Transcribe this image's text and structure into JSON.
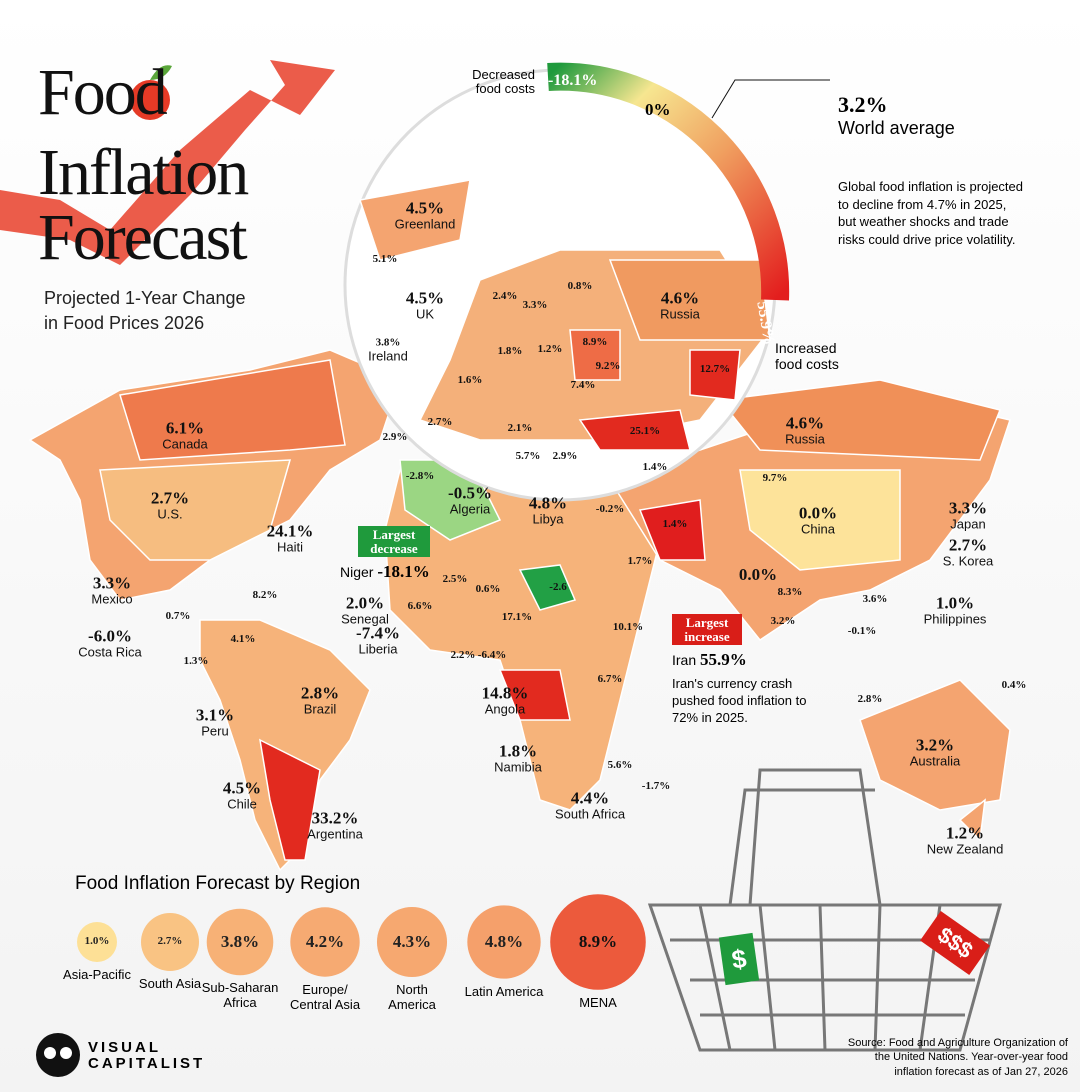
{
  "header": {
    "title_lines": [
      "Food",
      "Inflation",
      "Forecast"
    ],
    "subtitle_lines": [
      "Projected 1-Year Change",
      "in Food Prices 2026"
    ]
  },
  "gauge": {
    "min_label": "Decreased food costs",
    "min_value": "-18.1%",
    "mid_value": "0%",
    "max_value": "55.9%",
    "max_label": "Increased food costs"
  },
  "world_average": {
    "value": "3.2%",
    "label": "World average",
    "note": "Global food inflation is projected to decline from 4.7% in 2025, but weather shocks and trade risks could drive price volatility."
  },
  "countries": [
    {
      "value": "4.5%",
      "name": "Greenland"
    },
    {
      "value": "5.1%"
    },
    {
      "value": "4.5%",
      "name": "UK"
    },
    {
      "value": "3.8%",
      "name": "Ireland"
    },
    {
      "value": "4.6%",
      "name": "Russia"
    },
    {
      "value": "0.8%"
    },
    {
      "value": "2.4%"
    },
    {
      "value": "3.3%"
    },
    {
      "value": "8.9%"
    },
    {
      "value": "1.2%"
    },
    {
      "value": "1.8%"
    },
    {
      "value": "9.2%"
    },
    {
      "value": "1.6%"
    },
    {
      "value": "7.4%"
    },
    {
      "value": "12.7%"
    },
    {
      "value": "2.7%"
    },
    {
      "value": "2.1%"
    },
    {
      "value": "25.1%"
    },
    {
      "value": "2.9%"
    },
    {
      "value": "5.7%"
    },
    {
      "value": "2.9%"
    },
    {
      "value": "6.1%",
      "name": "Canada"
    },
    {
      "value": "4.6%",
      "name": "Russia"
    },
    {
      "value": "1.4%"
    },
    {
      "value": "9.7%"
    },
    {
      "value": "-2.8%"
    },
    {
      "value": "-0.5%",
      "name": "Algeria"
    },
    {
      "value": "4.8%",
      "name": "Libya"
    },
    {
      "value": "-0.2%"
    },
    {
      "value": "2.7%",
      "name": "U.S."
    },
    {
      "value": "0.0%",
      "name": "China"
    },
    {
      "value": "3.3%",
      "name": "Japan"
    },
    {
      "value": "2.7%",
      "name": "S. Korea"
    },
    {
      "value": "24.1%",
      "name": "Haiti"
    },
    {
      "value": "1.4%"
    },
    {
      "value": "1.7%"
    },
    {
      "value": "0.0%"
    },
    {
      "value": "3.3%",
      "name": "Mexico"
    },
    {
      "value": "8.2%"
    },
    {
      "value": "2.5%"
    },
    {
      "value": "0.6%"
    },
    {
      "value": "-2.6"
    },
    {
      "value": "2.0%",
      "name": "Senegal"
    },
    {
      "value": "6.6%"
    },
    {
      "value": "8.3%"
    },
    {
      "value": "3.6%"
    },
    {
      "value": "1.0%",
      "name": "Philippines"
    },
    {
      "value": "0.7%"
    },
    {
      "value": "-6.0%",
      "name": "Costa Rica"
    },
    {
      "value": "4.1%"
    },
    {
      "value": "17.1%"
    },
    {
      "value": "10.1%"
    },
    {
      "value": "-7.4%",
      "name": "Liberia"
    },
    {
      "value": "3.2%"
    },
    {
      "value": "-0.1%"
    },
    {
      "value": "1.3%"
    },
    {
      "value": "2.2%"
    },
    {
      "value": "-6.4%"
    },
    {
      "value": "6.7%"
    },
    {
      "value": "14.8%",
      "name": "Angola"
    },
    {
      "value": "2.8%",
      "name": "Brazil"
    },
    {
      "value": "3.1%",
      "name": "Peru"
    },
    {
      "value": "2.8%"
    },
    {
      "value": "0.4%"
    },
    {
      "value": "1.8%",
      "name": "Namibia"
    },
    {
      "value": "3.2%",
      "name": "Australia"
    },
    {
      "value": "5.6%"
    },
    {
      "value": "-1.7%"
    },
    {
      "value": "4.5%",
      "name": "Chile"
    },
    {
      "value": "4.4%",
      "name": "South Africa"
    },
    {
      "value": "33.2%",
      "name": "Argentina"
    },
    {
      "value": "1.2%",
      "name": "New Zealand"
    }
  ],
  "callouts": {
    "largest_decrease": {
      "tag": "Largest decrease",
      "name": "Niger",
      "value": "-18.1%"
    },
    "largest_increase": {
      "tag": "Largest increase",
      "name": "Iran",
      "value": "55.9%",
      "note": "Iran's currency crash pushed food inflation to 72% in 2025."
    }
  },
  "regions": {
    "title": "Food Inflation Forecast by Region",
    "items": [
      {
        "name": "Asia-Pacific",
        "value": 1.0,
        "value_label": "1.0%"
      },
      {
        "name": "South Asia",
        "value": 2.7,
        "value_label": "2.7%"
      },
      {
        "name": "Sub-Saharan Africa",
        "value": 3.8,
        "value_label": "3.8%"
      },
      {
        "name": "Europe/ Central Asia",
        "value": 4.2,
        "value_label": "4.2%"
      },
      {
        "name": "North America",
        "value": 4.3,
        "value_label": "4.3%"
      },
      {
        "name": "Latin America",
        "value": 4.8,
        "value_label": "4.8%"
      },
      {
        "name": "MENA",
        "value": 8.9,
        "value_label": "8.9%"
      }
    ]
  },
  "basket_tags": {
    "left": "$",
    "right": "$$$"
  },
  "brand": [
    "VISUAL",
    "CAPITALIST"
  ],
  "source": "Source: Food and Agriculture Organization of the United Nations. Year-over-year food inflation forecast as of Jan 27, 2026"
}
